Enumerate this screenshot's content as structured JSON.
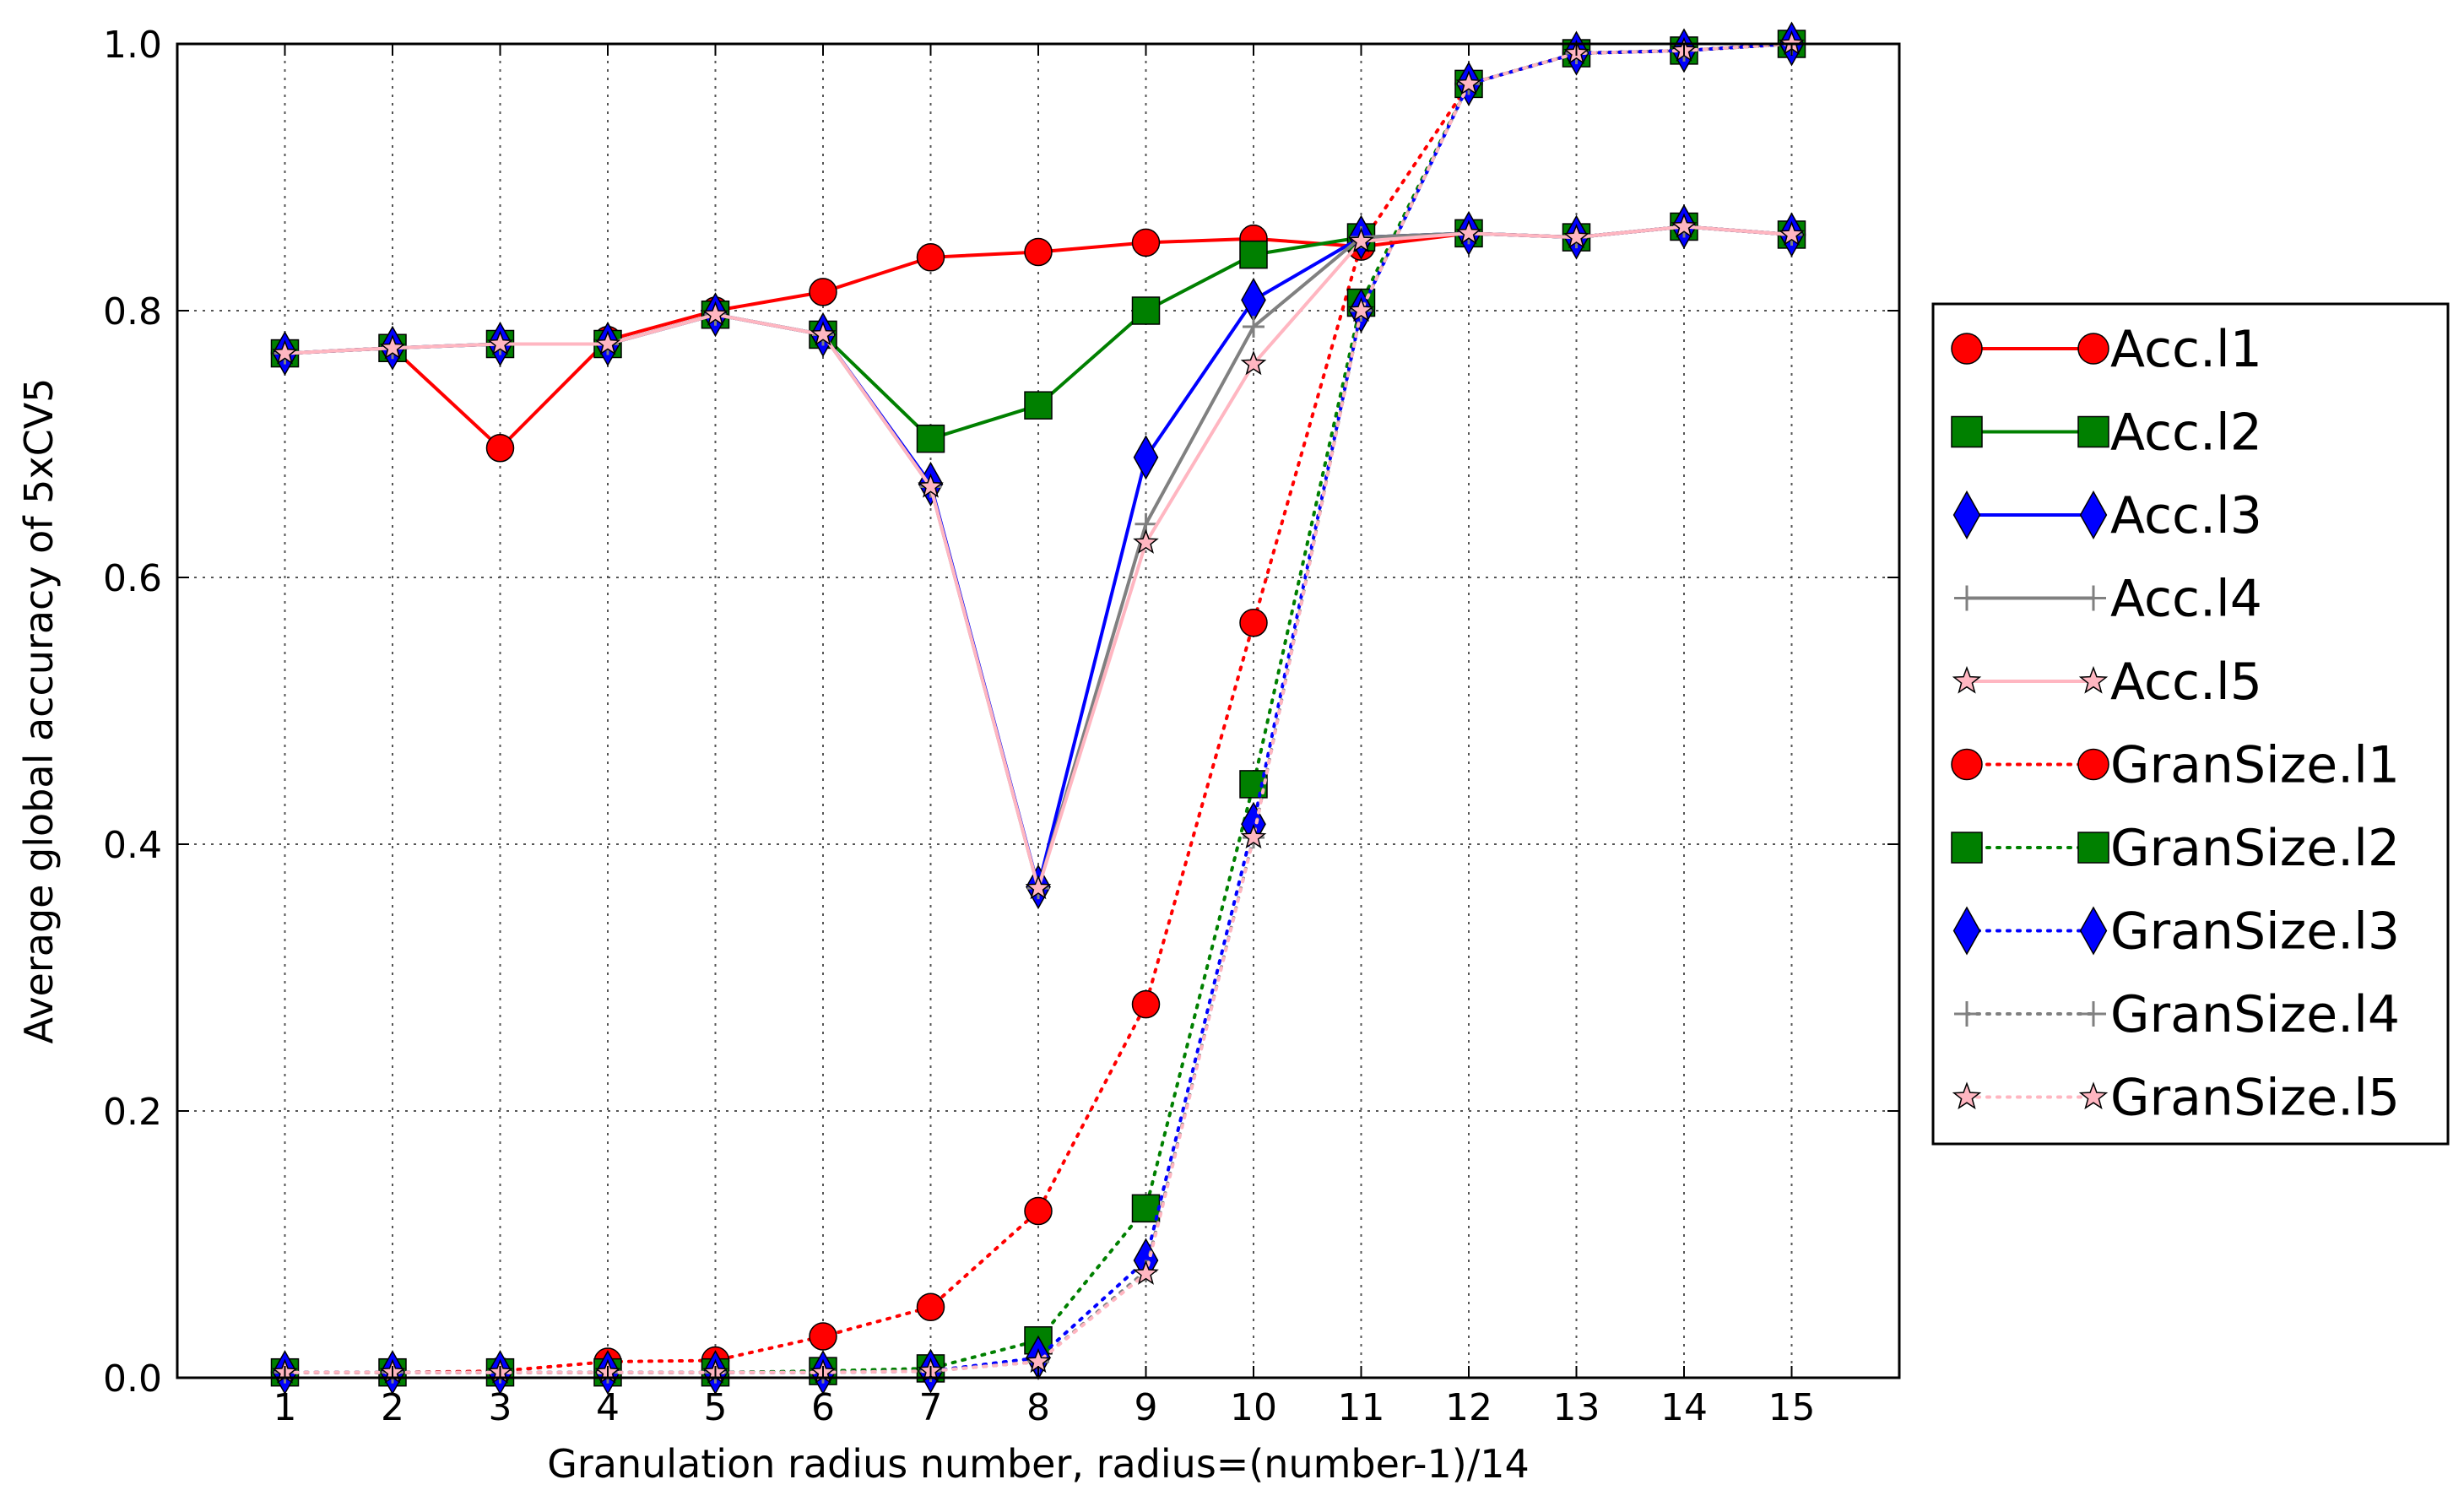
{
  "chart_data": {
    "type": "line",
    "title": "",
    "xlabel": "Granulation radius number,  radius=(number-1)/14",
    "ylabel": "Average global accuracy of 5xCV5",
    "x": [
      1,
      2,
      3,
      4,
      5,
      6,
      7,
      8,
      9,
      10,
      11,
      12,
      13,
      14,
      15
    ],
    "x_ticks": [
      "1",
      "2",
      "3",
      "4",
      "5",
      "6",
      "7",
      "8",
      "9",
      "10",
      "11",
      "12",
      "13",
      "14",
      "15"
    ],
    "xlim": [
      0,
      16
    ],
    "ylim": [
      0.0,
      1.0
    ],
    "y_ticks": [
      "0.0",
      "0.2",
      "0.4",
      "0.6",
      "0.8",
      "1.0"
    ],
    "grid": true,
    "legend_position": "right-outside",
    "series": [
      {
        "name": "Acc.l1",
        "color": "#ff0000",
        "line": "solid",
        "marker": "circle",
        "values": [
          0.768,
          0.772,
          0.697,
          0.778,
          0.8,
          0.814,
          0.84,
          0.844,
          0.851,
          0.854,
          0.848,
          0.858,
          0.855,
          0.863,
          0.857
        ]
      },
      {
        "name": "Acc.l2",
        "color": "#008000",
        "line": "solid",
        "marker": "square",
        "values": [
          0.768,
          0.772,
          0.775,
          0.775,
          0.797,
          0.782,
          0.704,
          0.729,
          0.8,
          0.842,
          0.855,
          0.858,
          0.855,
          0.863,
          0.857
        ]
      },
      {
        "name": "Acc.l3",
        "color": "#0000ff",
        "line": "solid",
        "marker": "diamond",
        "values": [
          0.768,
          0.772,
          0.775,
          0.775,
          0.797,
          0.782,
          0.67,
          0.368,
          0.69,
          0.808,
          0.855,
          0.858,
          0.855,
          0.863,
          0.857
        ]
      },
      {
        "name": "Acc.l4",
        "color": "#808080",
        "line": "solid",
        "marker": "plus",
        "values": [
          0.768,
          0.772,
          0.775,
          0.775,
          0.797,
          0.782,
          0.668,
          0.367,
          0.64,
          0.788,
          0.855,
          0.858,
          0.855,
          0.863,
          0.857
        ]
      },
      {
        "name": "Acc.l5",
        "color": "#ffb6c1",
        "line": "solid",
        "marker": "star",
        "values": [
          0.768,
          0.772,
          0.775,
          0.775,
          0.797,
          0.782,
          0.668,
          0.367,
          0.626,
          0.76,
          0.852,
          0.858,
          0.855,
          0.863,
          0.857
        ]
      },
      {
        "name": "GranSize.l1",
        "color": "#ff0000",
        "line": "dotted",
        "marker": "circle",
        "values": [
          0.004,
          0.004,
          0.005,
          0.012,
          0.013,
          0.031,
          0.053,
          0.125,
          0.28,
          0.566,
          0.85,
          0.97,
          0.993,
          0.995,
          1.0
        ]
      },
      {
        "name": "GranSize.l2",
        "color": "#008000",
        "line": "dotted",
        "marker": "square",
        "values": [
          0.004,
          0.004,
          0.004,
          0.004,
          0.004,
          0.005,
          0.007,
          0.028,
          0.127,
          0.445,
          0.806,
          0.97,
          0.993,
          0.995,
          1.0
        ]
      },
      {
        "name": "GranSize.l3",
        "color": "#0000ff",
        "line": "dotted",
        "marker": "diamond",
        "values": [
          0.004,
          0.004,
          0.004,
          0.004,
          0.004,
          0.004,
          0.005,
          0.015,
          0.088,
          0.415,
          0.8,
          0.97,
          0.993,
          0.995,
          1.0
        ]
      },
      {
        "name": "GranSize.l4",
        "color": "#808080",
        "line": "dotted",
        "marker": "plus",
        "values": [
          0.004,
          0.004,
          0.004,
          0.004,
          0.004,
          0.004,
          0.005,
          0.012,
          0.08,
          0.405,
          0.8,
          0.97,
          0.993,
          0.995,
          1.0
        ]
      },
      {
        "name": "GranSize.l5",
        "color": "#ffb6c1",
        "line": "dotted",
        "marker": "star",
        "values": [
          0.004,
          0.004,
          0.004,
          0.004,
          0.004,
          0.004,
          0.005,
          0.012,
          0.078,
          0.405,
          0.8,
          0.97,
          0.993,
          0.995,
          1.0
        ]
      }
    ]
  }
}
